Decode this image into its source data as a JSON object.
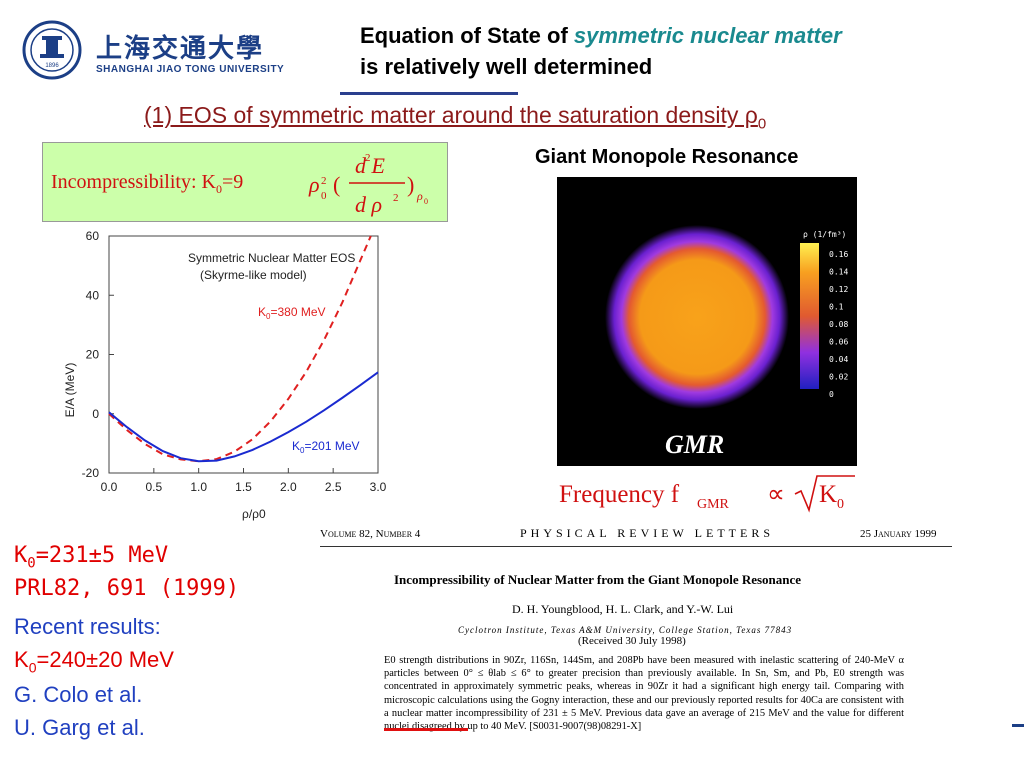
{
  "header": {
    "university_cn": "上海交通大學",
    "university_en": "SHANGHAI  JIAO TONG  UNIVERSITY",
    "logo_year": "1896",
    "title_prefix": "Equation of State of ",
    "title_accent": "symmetric nuclear matter",
    "title_line2": "is relatively well determined",
    "subtitle": "(1) EOS of symmetric matter around the saturation density ρ",
    "subtitle_sub": "0"
  },
  "formula": {
    "label": "Incompressibility: K",
    "label_sub": "0",
    "expr_coeff": "=9",
    "rho": "ρ",
    "num": "d E",
    "den": "d ρ"
  },
  "eos_chart": {
    "chart_data": {
      "type": "line",
      "title": "Symmetric Nuclear Matter EOS",
      "subtitle": "(Skyrme-like model)",
      "xlabel": "ρ/ρ0",
      "ylabel": "E/A (MeV)",
      "xlim": [
        0.0,
        3.0
      ],
      "ylim": [
        -20,
        60
      ],
      "xticks": [
        "0.0",
        "0.5",
        "1.0",
        "1.5",
        "2.0",
        "2.5",
        "3.0"
      ],
      "yticks": [
        "60",
        "40",
        "20",
        "0",
        "-20"
      ],
      "series": [
        {
          "name": "K0=380 MeV",
          "color": "#e02020",
          "style": "dashed",
          "x": [
            0.0,
            0.2,
            0.4,
            0.6,
            0.8,
            1.0,
            1.2,
            1.4,
            1.6,
            1.8,
            2.0,
            2.2,
            2.4,
            2.6,
            2.8,
            2.92
          ],
          "y": [
            0.0,
            -5.5,
            -10.2,
            -13.7,
            -15.4,
            -16.0,
            -15.3,
            -12.8,
            -8.6,
            -2.6,
            5.0,
            14.2,
            25.0,
            37.4,
            51.6,
            60.0
          ]
        },
        {
          "name": "K0=201 MeV",
          "color": "#1a2ad0",
          "style": "solid",
          "x": [
            0.0,
            0.2,
            0.4,
            0.6,
            0.8,
            1.0,
            1.2,
            1.4,
            1.6,
            1.8,
            2.0,
            2.2,
            2.4,
            2.6,
            2.8,
            3.0
          ],
          "y": [
            0.5,
            -4.5,
            -9.0,
            -12.6,
            -15.0,
            -16.0,
            -15.8,
            -14.4,
            -12.2,
            -9.4,
            -6.2,
            -2.7,
            1.2,
            5.3,
            9.6,
            14.0
          ]
        }
      ],
      "labels": {
        "k380": "K",
        "k380_sub": "0",
        "k380_rest": "=380 MeV",
        "k201": "K",
        "k201_sub": "0",
        "k201_rest": "=201 MeV"
      }
    }
  },
  "gmr": {
    "heading": "Giant Monopole Resonance",
    "label": "GMR",
    "colorbar_title": "ρ (1/fm³)",
    "colorbar_ticks": [
      "0.16",
      "0.14",
      "0.12",
      "0.1",
      "0.08",
      "0.06",
      "0.04",
      "0.02",
      "0"
    ],
    "frequency_text": "Frequency f",
    "frequency_sub": "GMR",
    "proportional": "∝",
    "k_text": "K",
    "k_sub": "0"
  },
  "prl": {
    "volume": "Volume 82, Number 4",
    "journal": "PHYSICAL REVIEW LETTERS",
    "date": "25 January 1999",
    "title": "Incompressibility of Nuclear Matter from the Giant Monopole Resonance",
    "authors": "D. H. Youngblood, H. L. Clark, and Y.-W. Lui",
    "affiliation": "Cyclotron Institute, Texas A&M University, College Station, Texas 77843",
    "received": "(Received 30 July 1998)",
    "abstract": "E0 strength distributions in 90Zr, 116Sn, 144Sm, and 208Pb have been measured with inelastic scattering of 240-MeV α particles between 0° ≤ θlab ≤ 6° to greater precision than previously available. In Sn, Sm, and Pb, E0 strength was concentrated in approximately symmetric peaks, whereas in 90Zr it had a significant high energy tail. Comparing with microscopic calculations using the Gogny interaction, these and our previously reported results for 40Ca are consistent with a nuclear matter incompressibility of 231 ± 5 MeV. Previous data gave an average of 215 MeV and the value for different nuclei disagreed by up to 40 MeV.   [S0031-9007(98)08291-X]"
  },
  "results": {
    "k0_line_prefix": "K",
    "k0_line_sub": "0",
    "k0_line_rest": "=231±5 MeV",
    "prl_ref": "PRL82, 691 (1999)",
    "recent": "Recent results:",
    "k0_new_prefix": "K",
    "k0_new_sub": "0",
    "k0_new_rest": "=240±20 MeV",
    "colo": "G. Colo et al.",
    "garg": "U. Garg et al."
  }
}
